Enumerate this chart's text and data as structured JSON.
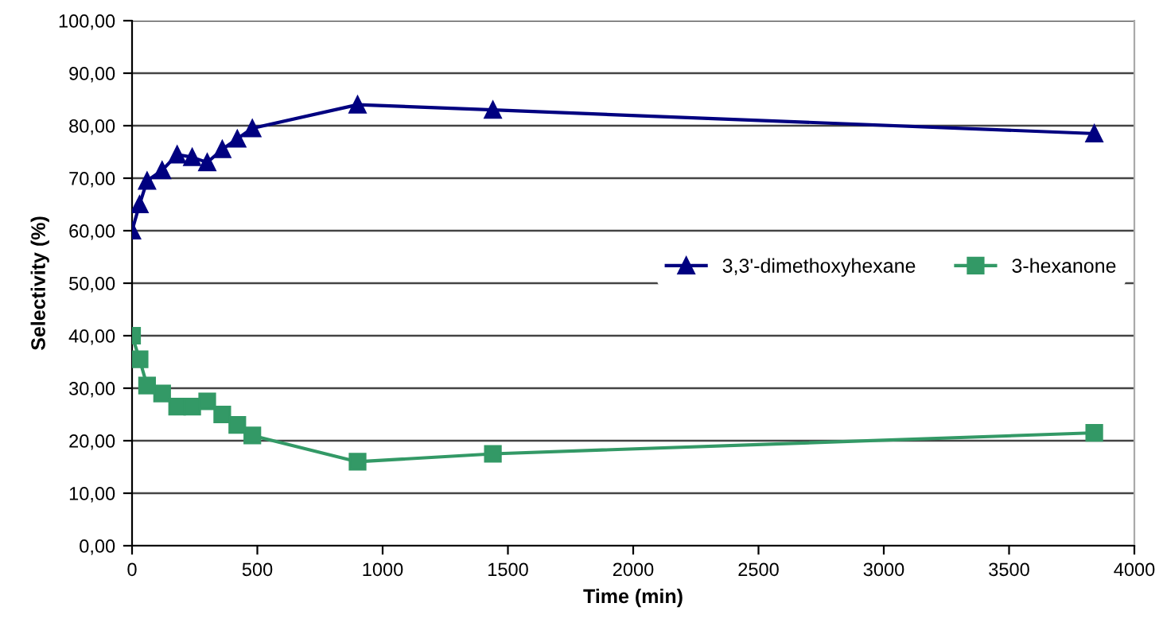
{
  "chart_data": {
    "type": "line",
    "xlabel": "Time (min)",
    "ylabel": "Selectivity (%)",
    "xlim": [
      0,
      4000
    ],
    "xticks": [
      0,
      500,
      1000,
      1500,
      2000,
      2500,
      3000,
      3500,
      4000
    ],
    "ylim": [
      0,
      100
    ],
    "yticks": [
      {
        "value": 0,
        "label": "0,00"
      },
      {
        "value": 10,
        "label": "10,00"
      },
      {
        "value": 20,
        "label": "20,00"
      },
      {
        "value": 30,
        "label": "30,00"
      },
      {
        "value": 40,
        "label": "40,00"
      },
      {
        "value": 50,
        "label": "50,00"
      },
      {
        "value": 60,
        "label": "60,00"
      },
      {
        "value": 70,
        "label": "70,00"
      },
      {
        "value": 80,
        "label": "80,00"
      },
      {
        "value": 90,
        "label": "90,00"
      },
      {
        "value": 100,
        "label": "100,00"
      }
    ],
    "x": [
      0,
      30,
      60,
      120,
      180,
      240,
      300,
      360,
      420,
      480,
      900,
      1440,
      3840
    ],
    "grid": "y",
    "legend": "right",
    "line_style": "solid",
    "series": [
      {
        "name": "3,3'-dimethoxyhexane",
        "color": "#000080",
        "marker": "triangle",
        "values": [
          60,
          65,
          69.5,
          71.5,
          74.5,
          74,
          73,
          75.5,
          77.5,
          79.5,
          84,
          83,
          78.5
        ]
      },
      {
        "name": "3-hexanone",
        "color": "#339966",
        "marker": "square",
        "values": [
          40,
          35.5,
          30.5,
          29,
          26.5,
          26.5,
          27.5,
          25,
          23,
          21,
          16,
          17.5,
          21.5
        ]
      }
    ]
  }
}
